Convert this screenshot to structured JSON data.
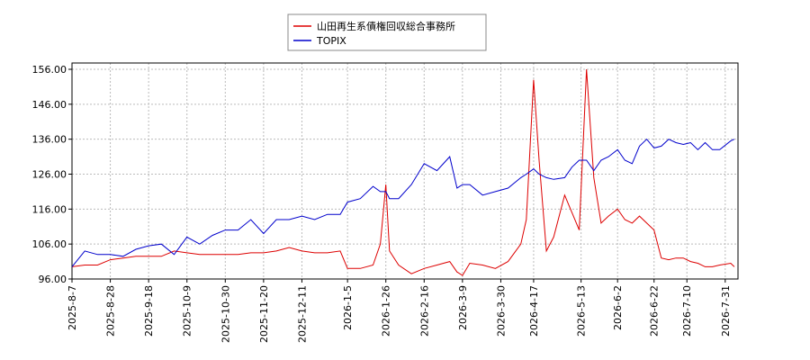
{
  "chart_data": {
    "type": "line",
    "x": [
      "2025-8-7",
      "2025-8-14",
      "2025-8-21",
      "2025-8-28",
      "2025-9-4",
      "2025-9-11",
      "2025-9-18",
      "2025-9-25",
      "2025-10-2",
      "2025-10-9",
      "2025-10-16",
      "2025-10-23",
      "2025-10-30",
      "2025-11-6",
      "2025-11-13",
      "2025-11-20",
      "2025-11-27",
      "2025-12-4",
      "2025-12-11",
      "2025-12-18",
      "2025-12-25",
      "2026-1-1",
      "2026-1-5",
      "2026-1-12",
      "2026-1-19",
      "2026-1-23",
      "2026-1-26",
      "2026-1-28",
      "2026-2-2",
      "2026-2-9",
      "2026-2-16",
      "2026-2-23",
      "2026-3-2",
      "2026-3-6",
      "2026-3-9",
      "2026-3-13",
      "2026-3-20",
      "2026-3-27",
      "2026-4-3",
      "2026-4-10",
      "2026-4-13",
      "2026-4-17",
      "2026-4-20",
      "2026-4-24",
      "2026-4-28",
      "2026-5-4",
      "2026-5-8",
      "2026-5-12",
      "2026-5-16",
      "2026-5-20",
      "2026-5-24",
      "2026-5-28",
      "2026-6-2",
      "2026-6-6",
      "2026-6-10",
      "2026-6-14",
      "2026-6-18",
      "2026-6-22",
      "2026-6-26",
      "2026-6-30",
      "2026-7-4",
      "2026-7-8",
      "2026-7-12",
      "2026-7-16",
      "2026-7-20",
      "2026-7-24",
      "2026-7-28",
      "2026-8-3",
      "2026-8-5"
    ],
    "series": [
      {
        "name": "山田再生系債権回収総合事務所",
        "color": "#dd0000",
        "values": [
          99.5,
          100,
          100,
          101.5,
          102,
          102.5,
          102.5,
          102.5,
          104,
          103.5,
          103,
          103,
          103,
          103,
          103.5,
          103.5,
          104,
          105,
          104,
          103.5,
          103.5,
          104,
          99,
          99,
          100,
          106,
          123,
          104,
          100,
          97.5,
          99,
          100,
          101,
          98,
          97,
          100.5,
          100,
          99,
          101,
          106,
          113,
          153,
          130,
          104,
          108,
          120,
          115,
          110,
          156,
          125,
          112,
          114,
          116,
          113,
          112,
          114,
          112,
          110,
          102,
          101.5,
          102,
          102,
          101,
          100.5,
          99.5,
          99.5,
          100,
          100.5,
          99.5
        ]
      },
      {
        "name": "TOPIX",
        "color": "#0000cc",
        "values": [
          99.5,
          104,
          103,
          103,
          102.5,
          104.5,
          105.5,
          106,
          103,
          108,
          106,
          108.5,
          110,
          110,
          113,
          109,
          113,
          113,
          114,
          113,
          114.5,
          114.5,
          118,
          119,
          122.5,
          121,
          121,
          119,
          119,
          123,
          129,
          127,
          131,
          122,
          123,
          123,
          120,
          121,
          122,
          125,
          126,
          127.5,
          126,
          125,
          124.5,
          125,
          128,
          130,
          130,
          127,
          130,
          131,
          133,
          130,
          129,
          134,
          136,
          133.5,
          134,
          136,
          135,
          134.5,
          135,
          133,
          135,
          133,
          133,
          135.5,
          136
        ]
      }
    ],
    "xlim": [
      "2025-8-7",
      "2026-8-7"
    ],
    "xticks": [
      "2025-8-7",
      "2025-8-28",
      "2025-9-18",
      "2025-10-9",
      "2025-10-30",
      "2025-11-20",
      "2025-12-11",
      "2026-1-5",
      "2026-1-26",
      "2026-2-16",
      "2026-3-9",
      "2026-3-30",
      "2026-4-17",
      "2026-5-13",
      "2026-6-2",
      "2026-6-22",
      "2026-7-10",
      "2026-7-31"
    ],
    "ylim": [
      96,
      157.8
    ],
    "yticks": [
      {
        "value": 96,
        "label": "96.00"
      },
      {
        "value": 106,
        "label": "106.00"
      },
      {
        "value": 116,
        "label": "116.00"
      },
      {
        "value": 126,
        "label": "126.00"
      },
      {
        "value": 136,
        "label": "136.00"
      },
      {
        "value": 146,
        "label": "146.00"
      },
      {
        "value": 156,
        "label": "156.00"
      }
    ],
    "grid": true
  }
}
